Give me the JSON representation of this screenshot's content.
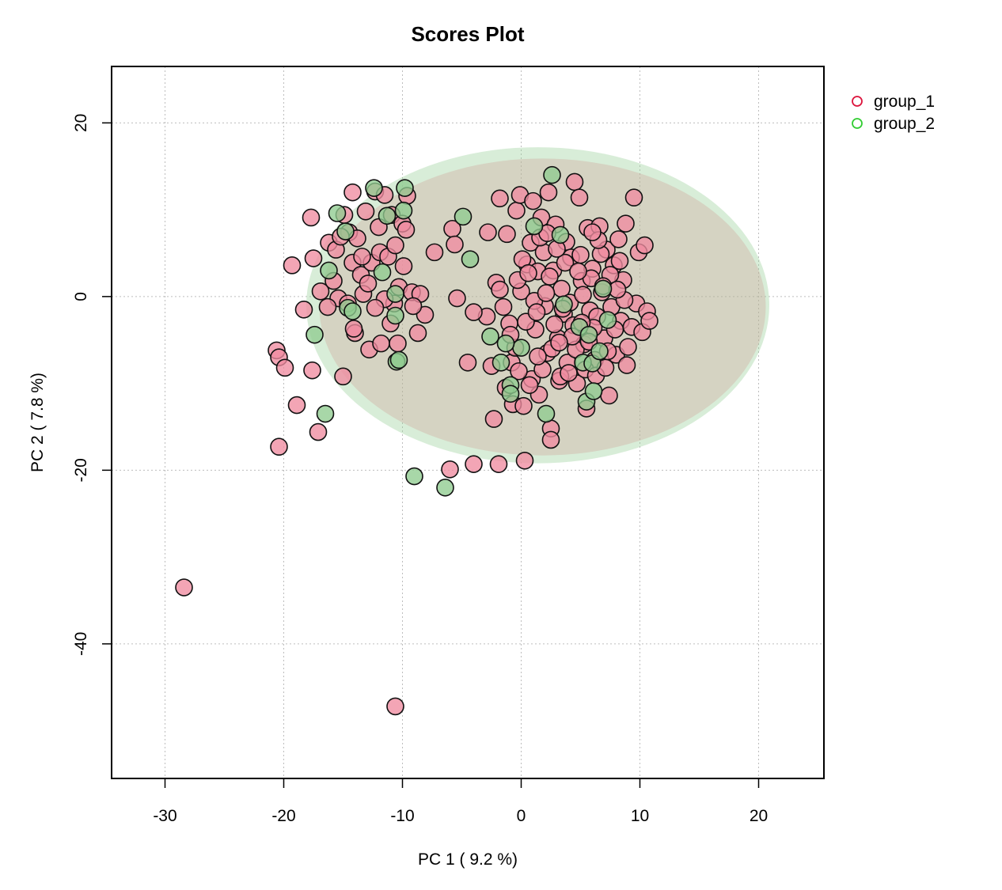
{
  "chart_data": {
    "type": "scatter",
    "title": "Scores Plot",
    "xlabel": "PC 1 ( 9.2 %)",
    "ylabel": "PC 2 ( 7.8 %)",
    "xlim": [
      -34.5,
      25.5
    ],
    "ylim": [
      -55.5,
      26.5
    ],
    "xticks": [
      -30,
      -20,
      -10,
      0,
      10,
      20
    ],
    "yticks": [
      -40,
      -20,
      0,
      20
    ],
    "xtick_labels": [
      "-30",
      "-20",
      "-10",
      "0",
      "10",
      "20"
    ],
    "ytick_labels": [
      "-40",
      "-20",
      "0",
      "20"
    ],
    "grid": true,
    "legend_position": "top-right (outside plot)",
    "series": [
      {
        "name": "group_1",
        "color": "#DC143C",
        "fill": "#F08CA0",
        "ellipse": {
          "cx": 1.8,
          "cy": -1.2,
          "rx": 18.8,
          "ry": 17.1
        },
        "points": [
          [
            -28.4,
            -33.5
          ],
          [
            -10.6,
            -47.2
          ],
          [
            -20.6,
            -6.2
          ],
          [
            -20.4,
            -7.0
          ],
          [
            -19.9,
            -8.2
          ],
          [
            -20.4,
            -17.3
          ],
          [
            -18.9,
            -12.5
          ],
          [
            -17.1,
            -15.6
          ],
          [
            -17.6,
            -8.5
          ],
          [
            -15,
            -9.2
          ],
          [
            -19.3,
            3.6
          ],
          [
            -18.3,
            -1.5
          ],
          [
            -17.7,
            9.1
          ],
          [
            -17.5,
            4.4
          ],
          [
            -16.9,
            0.6
          ],
          [
            -16.2,
            6.2
          ],
          [
            -15.8,
            1.8
          ],
          [
            -15.4,
            -0.2
          ],
          [
            -14.9,
            9.4
          ],
          [
            -14.5,
            7.4
          ],
          [
            -14.2,
            12.0
          ],
          [
            -14.2,
            3.9
          ],
          [
            -14.0,
            -4.2
          ],
          [
            -13.8,
            6.7
          ],
          [
            -13.5,
            2.5
          ],
          [
            -13.3,
            0.3
          ],
          [
            -13.1,
            9.8
          ],
          [
            -12.8,
            -6.1
          ],
          [
            -12.6,
            3.9
          ],
          [
            -12.3,
            12.1
          ],
          [
            -12.0,
            8.0
          ],
          [
            -11.9,
            5.1
          ],
          [
            -11.8,
            -5.4
          ],
          [
            -11.5,
            11.7
          ],
          [
            -11.2,
            4.6
          ],
          [
            -11.0,
            -3.1
          ],
          [
            -10.9,
            9.4
          ],
          [
            -10.6,
            5.9
          ],
          [
            -10.3,
            1.1
          ],
          [
            -10.4,
            -5.4
          ],
          [
            -10.0,
            8.4
          ],
          [
            -9.7,
            7.7
          ],
          [
            -9.6,
            11.6
          ],
          [
            -9.9,
            3.5
          ],
          [
            -9.2,
            0.5
          ],
          [
            -8.7,
            -4.2
          ],
          [
            -8.5,
            0.3
          ],
          [
            -8.1,
            -2.1
          ],
          [
            -7.3,
            5.1
          ],
          [
            -5.8,
            7.8
          ],
          [
            -5.6,
            6.0
          ],
          [
            -5.4,
            -0.2
          ],
          [
            -4.5,
            -7.6
          ],
          [
            -4.0,
            -19.3
          ],
          [
            -6.0,
            -19.9
          ],
          [
            -2.8,
            7.4
          ],
          [
            -2.9,
            -2.3
          ],
          [
            -1.9,
            -19.3
          ],
          [
            0.3,
            -18.9
          ],
          [
            -2.3,
            -14.1
          ],
          [
            -1.8,
            11.3
          ],
          [
            -2.1,
            1.6
          ],
          [
            -1.8,
            0.8
          ],
          [
            -1.2,
            7.2
          ],
          [
            -1.0,
            -3.1
          ],
          [
            -0.8,
            -7.6
          ],
          [
            -0.7,
            -12.4
          ],
          [
            -0.4,
            9.9
          ],
          [
            -0.5,
            -5.9
          ],
          [
            -0.1,
            11.7
          ],
          [
            0.0,
            0.6
          ],
          [
            0.2,
            -12.6
          ],
          [
            0.5,
            3.7
          ],
          [
            0.8,
            6.2
          ],
          [
            0.9,
            -9.5
          ],
          [
            1.0,
            11.0
          ],
          [
            1.2,
            -3.8
          ],
          [
            1.4,
            2.9
          ],
          [
            1.5,
            -11.3
          ],
          [
            1.7,
            9.1
          ],
          [
            1.9,
            5.1
          ],
          [
            2.0,
            -1.1
          ],
          [
            2.2,
            -6.5
          ],
          [
            2.3,
            12.0
          ],
          [
            2.5,
            -15.2
          ],
          [
            2.5,
            -16.5
          ],
          [
            2.7,
            3.0
          ],
          [
            2.9,
            8.3
          ],
          [
            3.1,
            -4.8
          ],
          [
            3.2,
            -9.7
          ],
          [
            3.4,
            0.9
          ],
          [
            3.6,
            -2.0
          ],
          [
            3.8,
            6.3
          ],
          [
            3.9,
            -7.6
          ],
          [
            4.2,
            4.5
          ],
          [
            4.4,
            -3.3
          ],
          [
            4.5,
            13.2
          ],
          [
            4.7,
            -10.0
          ],
          [
            4.9,
            11.4
          ],
          [
            5.1,
            1.8
          ],
          [
            5.3,
            -5.5
          ],
          [
            5.5,
            -12.9
          ],
          [
            5.6,
            7.9
          ],
          [
            5.8,
            -1.6
          ],
          [
            6.0,
            3.2
          ],
          [
            6.2,
            -7.3
          ],
          [
            6.4,
            -2.3
          ],
          [
            6.6,
            8.1
          ],
          [
            6.8,
            0.5
          ],
          [
            7.0,
            -4.8
          ],
          [
            7.2,
            5.4
          ],
          [
            7.4,
            -11.4
          ],
          [
            7.6,
            -1.2
          ],
          [
            7.8,
            3.6
          ],
          [
            8.0,
            -6.7
          ],
          [
            8.2,
            6.6
          ],
          [
            8.4,
            -2.8
          ],
          [
            8.6,
            1.9
          ],
          [
            8.8,
            8.4
          ],
          [
            9.0,
            -5.8
          ],
          [
            9.3,
            -3.5
          ],
          [
            9.5,
            11.4
          ],
          [
            9.7,
            -0.8
          ],
          [
            9.9,
            5.1
          ],
          [
            10.2,
            -4.1
          ],
          [
            10.4,
            5.9
          ],
          [
            10.6,
            -1.7
          ],
          [
            10.8,
            -2.8
          ],
          [
            8.9,
            -7.9
          ],
          [
            -16.3,
            -1.2
          ],
          [
            -15.6,
            5.4
          ],
          [
            -14.1,
            -3.7
          ],
          [
            -12.9,
            1.5
          ],
          [
            -10.7,
            -0.8
          ],
          [
            -9.1,
            -1.1
          ],
          [
            -13.4,
            4.6
          ],
          [
            -11.5,
            -0.3
          ],
          [
            -12.3,
            -1.3
          ],
          [
            -14.6,
            -0.8
          ],
          [
            -15.2,
            6.9
          ],
          [
            -4.0,
            -1.8
          ],
          [
            -0.9,
            -4.4
          ],
          [
            0.7,
            -10.2
          ],
          [
            1.1,
            -0.5
          ],
          [
            1.8,
            -8.4
          ],
          [
            2.1,
            0.4
          ],
          [
            2.8,
            -3.2
          ],
          [
            3.3,
            -9.2
          ],
          [
            3.7,
            3.9
          ],
          [
            4.1,
            -0.7
          ],
          [
            4.6,
            -6.1
          ],
          [
            5.0,
            4.8
          ],
          [
            5.4,
            -8.4
          ],
          [
            5.9,
            2.1
          ],
          [
            6.3,
            -9.1
          ],
          [
            6.7,
            4.9
          ],
          [
            7.1,
            -8.2
          ],
          [
            7.5,
            2.5
          ],
          [
            7.9,
            -3.8
          ],
          [
            8.3,
            4.1
          ],
          [
            -0.3,
            1.9
          ],
          [
            0.4,
            -2.9
          ],
          [
            1.6,
            6.8
          ],
          [
            2.6,
            -6.0
          ],
          [
            3.0,
            5.5
          ],
          [
            4.3,
            -4.6
          ],
          [
            5.2,
            0.2
          ],
          [
            6.1,
            -3.6
          ],
          [
            6.9,
            1.2
          ],
          [
            8.7,
            -0.4
          ],
          [
            -1.5,
            -1.2
          ],
          [
            0.1,
            4.3
          ],
          [
            1.3,
            -1.8
          ],
          [
            2.4,
            2.3
          ],
          [
            3.5,
            -1.4
          ],
          [
            4.8,
            2.9
          ],
          [
            5.7,
            -5.2
          ],
          [
            6.5,
            6.5
          ],
          [
            7.3,
            -6.3
          ],
          [
            8.1,
            0.8
          ],
          [
            -2.5,
            -8.0
          ],
          [
            -1.3,
            -10.5
          ],
          [
            -0.2,
            -8.6
          ],
          [
            0.6,
            2.7
          ],
          [
            1.4,
            -6.9
          ],
          [
            2.2,
            7.3
          ],
          [
            3.2,
            -5.3
          ],
          [
            4.0,
            -8.8
          ],
          [
            5.1,
            -3.0
          ],
          [
            6.0,
            7.4
          ]
        ]
      },
      {
        "name": "group_2",
        "color": "#32CD32",
        "fill": "#8FCC8F",
        "ellipse": {
          "cx": 1.4,
          "cy": -1.0,
          "rx": 19.5,
          "ry": 18.2
        },
        "points": [
          [
            -16.5,
            -13.5
          ],
          [
            -17.4,
            -4.4
          ],
          [
            -9.0,
            -20.7
          ],
          [
            -6.4,
            -22.0
          ],
          [
            -14.6,
            -1.3
          ],
          [
            -14.2,
            -1.7
          ],
          [
            -16.2,
            3.0
          ],
          [
            -15.5,
            9.6
          ],
          [
            -14.8,
            7.5
          ],
          [
            -12.4,
            12.5
          ],
          [
            -11.7,
            2.8
          ],
          [
            -10.6,
            -2.2
          ],
          [
            -10.5,
            -7.5
          ],
          [
            -10.6,
            0.3
          ],
          [
            -9.8,
            12.5
          ],
          [
            -9.9,
            9.9
          ],
          [
            -11.3,
            9.3
          ],
          [
            -4.9,
            9.2
          ],
          [
            -4.3,
            4.3
          ],
          [
            -2.6,
            -4.6
          ],
          [
            -1.7,
            -7.6
          ],
          [
            -0.9,
            -10.2
          ],
          [
            -0.9,
            -11.2
          ],
          [
            0.0,
            -5.9
          ],
          [
            1.1,
            8.1
          ],
          [
            2.1,
            -13.5
          ],
          [
            2.6,
            14.0
          ],
          [
            3.3,
            7.1
          ],
          [
            4.9,
            -3.5
          ],
          [
            5.2,
            -7.6
          ],
          [
            5.7,
            -4.4
          ],
          [
            6.0,
            -7.7
          ],
          [
            6.6,
            -6.3
          ],
          [
            6.9,
            0.9
          ],
          [
            7.3,
            -2.7
          ],
          [
            5.5,
            -12.1
          ],
          [
            6.1,
            -10.9
          ],
          [
            -10.3,
            -7.3
          ],
          [
            -1.3,
            -5.4
          ],
          [
            3.6,
            -0.9
          ]
        ]
      }
    ]
  }
}
